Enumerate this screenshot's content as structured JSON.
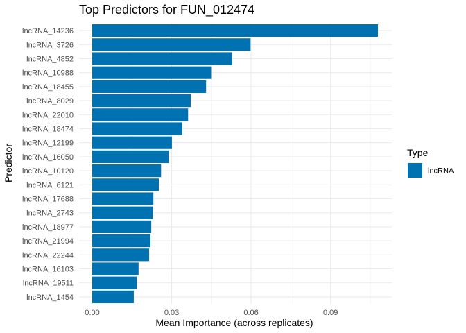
{
  "chart_data": {
    "type": "bar",
    "orientation": "horizontal",
    "title": "Top Predictors for FUN_012474",
    "xlabel": "Mean Importance (across replicates)",
    "ylabel": "Predictor",
    "xlim": [
      0,
      0.113
    ],
    "x_ticks": [
      0.0,
      0.03,
      0.06,
      0.09
    ],
    "x_tick_labels": [
      "0.00",
      "0.03",
      "0.06",
      "0.09"
    ],
    "categories": [
      "lncRNA_14236",
      "lncRNA_3726",
      "lncRNA_4852",
      "lncRNA_10988",
      "lncRNA_18455",
      "lncRNA_8029",
      "lncRNA_22010",
      "lncRNA_18474",
      "lncRNA_12199",
      "lncRNA_16050",
      "lncRNA_10120",
      "lncRNA_6121",
      "lncRNA_17688",
      "lncRNA_2743",
      "lncRNA_18977",
      "lncRNA_21994",
      "lncRNA_22244",
      "lncRNA_16103",
      "lncRNA_19511",
      "lncRNA_1454"
    ],
    "series": [
      {
        "name": "lncRNA",
        "color": "#0072b2",
        "values": [
          0.1079,
          0.0598,
          0.0528,
          0.0449,
          0.043,
          0.0372,
          0.0362,
          0.034,
          0.0301,
          0.0289,
          0.026,
          0.0252,
          0.0231,
          0.0229,
          0.0223,
          0.022,
          0.0215,
          0.0175,
          0.0168,
          0.0157
        ]
      }
    ],
    "legend": {
      "title": "Type",
      "position": "right",
      "entries": [
        "lncRNA"
      ]
    },
    "grid": true,
    "background": "#ffffff"
  }
}
